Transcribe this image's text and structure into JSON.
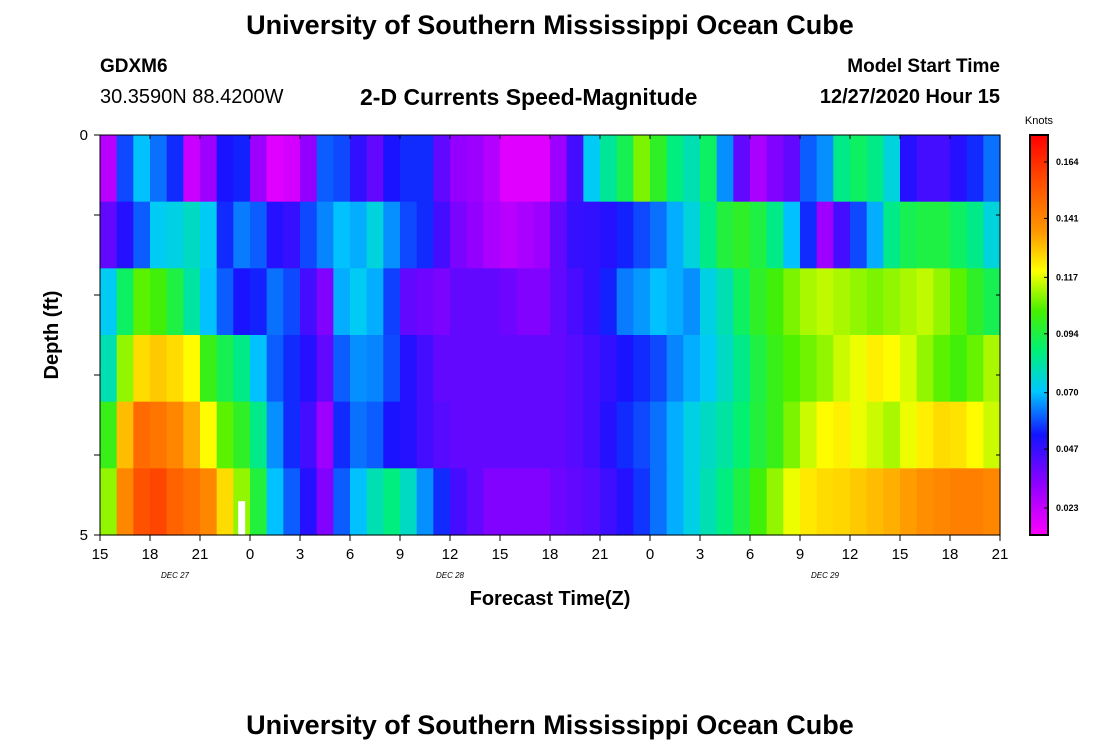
{
  "header": {
    "title": "University of Southern Mississippi Ocean Cube",
    "station": "GDXM6",
    "coordinates": "30.3590N 88.4200W",
    "chart_title": "2-D Currents Speed-Magnitude",
    "model_start_label": "Model Start Time",
    "model_start_value": "12/27/2020 Hour 15"
  },
  "footer": {
    "title": "University of Southern Mississippi Ocean Cube"
  },
  "chart_data": {
    "type": "heatmap",
    "title": "2-D Currents Speed-Magnitude",
    "xlabel": "Forecast Time(Z)",
    "ylabel": "Depth (ft)",
    "x_unit": "hours from model start",
    "xlim": [
      0,
      54
    ],
    "ylim": [
      0,
      5
    ],
    "x_tick_values": [
      0,
      3,
      6,
      9,
      12,
      15,
      18,
      21,
      24,
      27,
      30,
      33,
      36,
      39,
      42,
      45,
      48,
      51,
      54
    ],
    "x_tick_labels": [
      "15",
      "18",
      "21",
      "0",
      "3",
      "6",
      "9",
      "12",
      "15",
      "18",
      "21",
      "0",
      "3",
      "6",
      "9",
      "12",
      "15",
      "18",
      "21"
    ],
    "y_tick_labels": [
      "0",
      "5"
    ],
    "date_labels": [
      {
        "text": "DEC 27",
        "x": 4.5
      },
      {
        "text": "DEC 28",
        "x": 21
      },
      {
        "text": "DEC 29",
        "x": 43.5
      }
    ],
    "colorbar": {
      "label": "Knots",
      "min": 0.012,
      "max": 0.175,
      "ticks": [
        0.023,
        0.047,
        0.07,
        0.094,
        0.117,
        0.141,
        0.164
      ],
      "tick_labels": [
        "0.023",
        "0.047",
        "0.070",
        "0.094",
        "0.117",
        "0.141",
        "0.164"
      ]
    },
    "depth_layers": [
      0,
      1,
      2,
      3,
      4,
      5
    ],
    "hours_per_column": 1,
    "values": [
      [
        0.025,
        0.058,
        0.07,
        0.062,
        0.055,
        0.022,
        0.03,
        0.052,
        0.054,
        0.03,
        0.018,
        0.02,
        0.032,
        0.06,
        0.058,
        0.048,
        0.04,
        0.052,
        0.055,
        0.055,
        0.04,
        0.032,
        0.03,
        0.026,
        0.018,
        0.018,
        0.018,
        0.03,
        0.045,
        0.072,
        0.083,
        0.092,
        0.108,
        0.098,
        0.086,
        0.08,
        0.09,
        0.065,
        0.04,
        0.028,
        0.035,
        0.04,
        0.06,
        0.065,
        0.085,
        0.09,
        0.085,
        0.075,
        0.05,
        0.045,
        0.045,
        0.05,
        0.055,
        0.062
      ],
      [
        0.04,
        0.05,
        0.06,
        0.072,
        0.074,
        0.078,
        0.072,
        0.055,
        0.063,
        0.06,
        0.05,
        0.047,
        0.058,
        0.064,
        0.07,
        0.068,
        0.075,
        0.065,
        0.058,
        0.055,
        0.045,
        0.036,
        0.032,
        0.028,
        0.025,
        0.028,
        0.03,
        0.04,
        0.047,
        0.048,
        0.05,
        0.054,
        0.058,
        0.062,
        0.068,
        0.075,
        0.085,
        0.095,
        0.098,
        0.094,
        0.085,
        0.07,
        0.055,
        0.03,
        0.045,
        0.058,
        0.068,
        0.085,
        0.092,
        0.094,
        0.094,
        0.09,
        0.085,
        0.075
      ],
      [
        0.072,
        0.09,
        0.105,
        0.102,
        0.094,
        0.082,
        0.07,
        0.06,
        0.052,
        0.054,
        0.062,
        0.058,
        0.045,
        0.035,
        0.068,
        0.072,
        0.068,
        0.057,
        0.04,
        0.038,
        0.036,
        0.04,
        0.04,
        0.04,
        0.038,
        0.035,
        0.035,
        0.04,
        0.044,
        0.048,
        0.054,
        0.063,
        0.066,
        0.07,
        0.068,
        0.065,
        0.074,
        0.08,
        0.09,
        0.098,
        0.102,
        0.108,
        0.112,
        0.114,
        0.112,
        0.11,
        0.108,
        0.11,
        0.112,
        0.114,
        0.11,
        0.105,
        0.098,
        0.092
      ],
      [
        0.08,
        0.11,
        0.125,
        0.128,
        0.125,
        0.12,
        0.1,
        0.092,
        0.085,
        0.07,
        0.06,
        0.055,
        0.05,
        0.04,
        0.06,
        0.065,
        0.064,
        0.058,
        0.05,
        0.045,
        0.04,
        0.04,
        0.04,
        0.04,
        0.04,
        0.04,
        0.04,
        0.04,
        0.042,
        0.045,
        0.048,
        0.052,
        0.055,
        0.058,
        0.064,
        0.068,
        0.072,
        0.078,
        0.085,
        0.094,
        0.1,
        0.104,
        0.107,
        0.11,
        0.115,
        0.118,
        0.122,
        0.12,
        0.116,
        0.11,
        0.105,
        0.102,
        0.106,
        0.112
      ],
      [
        0.1,
        0.13,
        0.148,
        0.145,
        0.14,
        0.132,
        0.12,
        0.105,
        0.098,
        0.085,
        0.065,
        0.055,
        0.045,
        0.03,
        0.055,
        0.062,
        0.06,
        0.052,
        0.05,
        0.045,
        0.042,
        0.04,
        0.04,
        0.04,
        0.04,
        0.04,
        0.04,
        0.04,
        0.042,
        0.045,
        0.05,
        0.055,
        0.058,
        0.062,
        0.068,
        0.074,
        0.078,
        0.082,
        0.088,
        0.095,
        0.1,
        0.108,
        0.115,
        0.12,
        0.122,
        0.118,
        0.115,
        0.112,
        0.118,
        0.122,
        0.125,
        0.124,
        0.12,
        0.115
      ],
      [
        0.11,
        0.14,
        0.155,
        0.158,
        0.15,
        0.146,
        0.14,
        0.125,
        0.11,
        0.095,
        0.07,
        0.06,
        0.05,
        0.035,
        0.06,
        0.07,
        0.08,
        0.086,
        0.078,
        0.065,
        0.055,
        0.045,
        0.04,
        0.035,
        0.035,
        0.035,
        0.035,
        0.038,
        0.04,
        0.042,
        0.046,
        0.05,
        0.056,
        0.062,
        0.068,
        0.074,
        0.08,
        0.086,
        0.094,
        0.102,
        0.11,
        0.118,
        0.123,
        0.125,
        0.126,
        0.128,
        0.13,
        0.132,
        0.135,
        0.138,
        0.14,
        0.142,
        0.142,
        0.14
      ]
    ],
    "missing_data": [
      {
        "x": 8,
        "depth": 5
      }
    ]
  }
}
